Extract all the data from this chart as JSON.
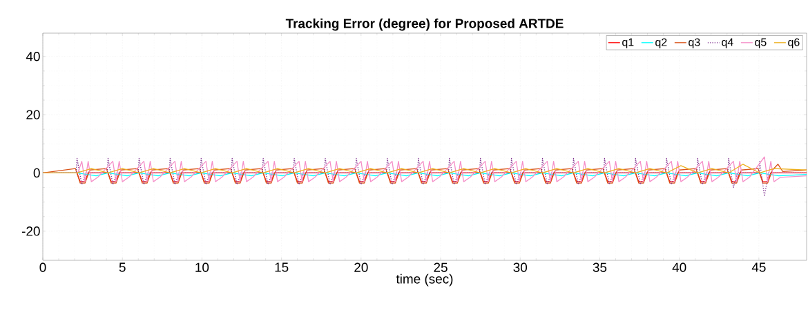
{
  "chart_data": {
    "type": "line",
    "title": "Tracking Error (degree) for Proposed ARTDE",
    "xlabel": "time (sec)",
    "xlim": [
      0,
      48
    ],
    "ylim": [
      -30,
      48
    ],
    "xticks": [
      0,
      5,
      10,
      15,
      20,
      25,
      30,
      35,
      40,
      45
    ],
    "yticks": [
      -20,
      0,
      20,
      40
    ],
    "grid": true,
    "legend": "top right",
    "series": [
      {
        "name": "q1",
        "color": "#ff0000",
        "x": [
          0,
          2.15,
          2.35,
          2.65,
          2.85,
          4.1,
          4.3,
          4.6,
          4.8,
          6.05,
          6.25,
          6.55,
          6.75,
          8.0,
          8.2,
          8.5,
          8.7,
          9.95,
          10.15,
          10.45,
          10.65,
          11.9,
          12.1,
          12.4,
          12.6,
          13.85,
          14.05,
          14.35,
          14.55,
          15.8,
          16.0,
          16.3,
          16.5,
          17.75,
          17.95,
          18.25,
          18.45,
          19.7,
          19.9,
          20.2,
          20.4,
          21.65,
          21.85,
          22.15,
          22.35,
          23.6,
          23.8,
          24.1,
          24.3,
          25.55,
          25.75,
          26.05,
          26.25,
          27.5,
          27.7,
          28.0,
          28.2,
          29.45,
          29.65,
          29.95,
          30.15,
          31.4,
          31.6,
          31.9,
          32.1,
          33.35,
          33.55,
          33.85,
          34.05,
          35.3,
          35.5,
          35.8,
          36.0,
          37.25,
          37.45,
          37.75,
          37.95,
          39.2,
          39.4,
          39.7,
          39.9,
          41.15,
          41.35,
          41.65,
          41.85,
          43.1,
          43.3,
          43.6,
          43.8,
          45.05,
          45.25,
          45.55,
          45.75,
          48
        ],
        "values": [
          0,
          0,
          -3,
          -3,
          0,
          0,
          -3,
          -3,
          0,
          0,
          -3,
          -3,
          0,
          0,
          -3,
          -3,
          0,
          0,
          -3,
          -3,
          0,
          0,
          -3,
          -3,
          0,
          0,
          -3,
          -3,
          0,
          0,
          -3,
          -3,
          0,
          0,
          -3,
          -3,
          0,
          0,
          -3,
          -3,
          0,
          0,
          -3,
          -3,
          0,
          0,
          -3,
          -3,
          0,
          0,
          -3,
          -3,
          0,
          0,
          -3,
          -3,
          0,
          0,
          -3,
          -3,
          0,
          0,
          -3,
          -3,
          0,
          0,
          -3,
          -3,
          0,
          0,
          -3,
          -3,
          0,
          0,
          -3,
          -3,
          0,
          0,
          -3,
          -3,
          0,
          0,
          -3,
          -3,
          0,
          0,
          -3,
          -3,
          0,
          0,
          -3,
          -3,
          0,
          0
        ]
      },
      {
        "name": "q2",
        "color": "#00ffff",
        "x": [
          0,
          2.15,
          3.35,
          4.1,
          5.3,
          6.05,
          7.25,
          8.0,
          9.2,
          9.95,
          11.15,
          11.9,
          13.1,
          13.85,
          15.05,
          15.8,
          17.0,
          17.75,
          18.95,
          19.7,
          20.9,
          21.65,
          22.85,
          23.6,
          24.8,
          25.55,
          26.75,
          27.5,
          28.7,
          29.45,
          30.65,
          31.4,
          32.6,
          33.35,
          34.55,
          35.3,
          36.5,
          37.25,
          38.45,
          39.2,
          40.4,
          41.15,
          42.35,
          43.1,
          44.3,
          45.05,
          46.25,
          48
        ],
        "values": [
          0,
          0,
          -1,
          0,
          -1,
          0,
          -1,
          0,
          -1,
          0,
          -1,
          0,
          -1,
          0,
          -1,
          0,
          -1,
          0,
          -1,
          0,
          -1,
          0,
          -1,
          0,
          -1,
          0,
          -1,
          0,
          -1,
          0,
          -1,
          0,
          -1,
          0,
          -1,
          0,
          -1,
          0,
          -1,
          0,
          -1,
          0,
          -1,
          0,
          -1,
          0,
          -1,
          -0.5
        ]
      },
      {
        "name": "q3",
        "color": "#d95319",
        "x": [
          0,
          2.05,
          2.35,
          2.65,
          2.95,
          4.0,
          4.3,
          4.6,
          4.9,
          5.95,
          6.25,
          6.55,
          6.85,
          7.9,
          8.2,
          8.5,
          8.8,
          9.85,
          10.15,
          10.45,
          10.75,
          11.8,
          12.1,
          12.4,
          12.7,
          13.75,
          14.05,
          14.35,
          14.65,
          15.7,
          16.0,
          16.3,
          16.6,
          17.65,
          17.95,
          18.25,
          18.55,
          19.6,
          19.9,
          20.2,
          20.5,
          21.55,
          21.85,
          22.15,
          22.45,
          23.5,
          23.8,
          24.1,
          24.4,
          25.45,
          25.75,
          26.05,
          26.35,
          27.4,
          27.7,
          28.0,
          28.3,
          29.35,
          29.65,
          29.95,
          30.25,
          31.3,
          31.6,
          31.9,
          32.2,
          33.25,
          33.55,
          33.85,
          34.15,
          35.2,
          35.5,
          35.8,
          36.1,
          37.15,
          37.45,
          37.75,
          38.05,
          39.1,
          39.4,
          39.7,
          40.0,
          41.05,
          41.35,
          41.65,
          41.95,
          43.0,
          43.3,
          43.6,
          43.9,
          44.95,
          45.25,
          45.55,
          45.85,
          46.2,
          46.5,
          48
        ],
        "values": [
          0,
          1.5,
          -3.5,
          -3.5,
          1,
          1.5,
          -3.5,
          -3.5,
          1,
          1.5,
          -3.5,
          -3.5,
          1,
          1.5,
          -3.5,
          -3.5,
          1,
          1.5,
          -3.5,
          -3.5,
          1,
          1.5,
          -3.5,
          -3.5,
          1,
          1.5,
          -3.5,
          -3.5,
          1,
          1.5,
          -3.5,
          -3.5,
          1,
          1.5,
          -3.5,
          -3.5,
          1,
          1.5,
          -3.5,
          -3.5,
          1,
          1.5,
          -3.5,
          -3.5,
          1,
          1.5,
          -3.5,
          -3.5,
          1,
          1.5,
          -3.5,
          -3.5,
          1,
          1.5,
          -3.5,
          -3.5,
          1,
          1.5,
          -3.5,
          -3.5,
          1,
          1.5,
          -3.5,
          -3.5,
          1,
          1.5,
          -3.5,
          -3.5,
          1,
          1.5,
          -3.5,
          -3.5,
          1,
          1.5,
          -3.5,
          -3.5,
          1,
          1.5,
          -3.5,
          -3.5,
          1,
          1.5,
          -3.5,
          -3.5,
          1,
          1.5,
          -3.5,
          -3.5,
          1,
          1.5,
          -3.5,
          -3.5,
          1,
          3,
          0.5,
          1
        ]
      },
      {
        "name": "q4",
        "color": "#7e2f8e",
        "line_style": "dotted",
        "x": [
          0,
          2.1,
          2.15,
          2.45,
          2.7,
          4.05,
          4.1,
          4.4,
          4.65,
          6.0,
          6.05,
          6.35,
          6.6,
          7.95,
          8.0,
          8.3,
          8.55,
          9.9,
          9.95,
          10.25,
          10.5,
          11.85,
          11.9,
          12.2,
          12.45,
          13.8,
          13.85,
          14.15,
          14.4,
          15.75,
          15.8,
          16.1,
          16.35,
          17.7,
          17.75,
          18.05,
          18.3,
          19.65,
          19.7,
          20.0,
          20.25,
          21.6,
          21.65,
          21.95,
          22.2,
          23.55,
          23.6,
          23.9,
          24.15,
          25.5,
          25.55,
          25.85,
          26.1,
          27.45,
          27.5,
          27.8,
          28.05,
          29.4,
          29.45,
          29.75,
          30.0,
          31.35,
          31.4,
          31.7,
          31.95,
          33.3,
          33.35,
          33.65,
          33.9,
          35.25,
          35.3,
          35.6,
          35.85,
          37.2,
          37.25,
          37.55,
          37.8,
          39.15,
          39.2,
          39.5,
          39.75,
          41.1,
          41.15,
          41.45,
          41.7,
          43.05,
          43.1,
          43.4,
          43.65,
          45.0,
          45.05,
          45.35,
          45.6,
          48
        ],
        "values": [
          0,
          0,
          5,
          -4,
          0,
          0,
          5,
          -4,
          0,
          0,
          5,
          -4,
          0,
          0,
          5,
          -4,
          0,
          0,
          5,
          -4,
          0,
          0,
          5,
          -4,
          0,
          0,
          5,
          -4,
          0,
          0,
          5,
          -4,
          0,
          0,
          5,
          -4,
          0,
          0,
          5,
          -4,
          0,
          0,
          5,
          -4,
          0,
          0,
          5,
          -4,
          0,
          0,
          5,
          -4,
          0,
          0,
          5,
          -4,
          0,
          0,
          5,
          -4,
          0,
          0,
          5,
          -4,
          0,
          0,
          5,
          -4,
          0,
          0,
          5,
          -4,
          0,
          0,
          5,
          -4,
          0,
          0,
          5,
          -4,
          0,
          0,
          5,
          -4,
          0,
          0,
          5,
          -5,
          0,
          0,
          4,
          -8,
          0,
          0
        ]
      },
      {
        "name": "q5",
        "color": "#f58fc8",
        "x": [
          0,
          2.2,
          2.45,
          2.65,
          2.85,
          3.05,
          3.45,
          4.4,
          4.6,
          4.8,
          5.0,
          5.4,
          6.35,
          6.55,
          6.75,
          6.95,
          7.35,
          8.3,
          8.5,
          8.7,
          8.9,
          9.3,
          10.25,
          10.45,
          10.65,
          10.85,
          11.25,
          12.2,
          12.4,
          12.6,
          12.8,
          13.2,
          14.15,
          14.35,
          14.55,
          14.75,
          15.15,
          16.1,
          16.3,
          16.5,
          16.7,
          17.1,
          18.05,
          18.25,
          18.45,
          18.65,
          19.05,
          20.0,
          20.2,
          20.4,
          20.6,
          21.0,
          21.95,
          22.15,
          22.35,
          22.55,
          22.95,
          23.9,
          24.1,
          24.3,
          24.5,
          24.9,
          25.85,
          26.05,
          26.25,
          26.45,
          26.85,
          27.8,
          28.0,
          28.2,
          28.4,
          28.8,
          29.75,
          29.95,
          30.15,
          30.35,
          30.75,
          31.7,
          31.9,
          32.1,
          32.3,
          32.7,
          33.65,
          33.85,
          34.05,
          34.25,
          34.65,
          35.6,
          35.8,
          36.0,
          36.2,
          36.6,
          37.55,
          37.75,
          37.95,
          38.15,
          38.55,
          39.5,
          39.7,
          39.9,
          40.1,
          40.5,
          41.45,
          41.65,
          41.85,
          42.05,
          42.45,
          43.4,
          43.6,
          43.8,
          44.0,
          44.4,
          45.35,
          45.55,
          45.75,
          45.95,
          46.35,
          48
        ],
        "values": [
          0,
          0,
          4,
          -3,
          4,
          -3,
          -1.5,
          4,
          -3,
          4,
          -3,
          -1.5,
          4,
          -3,
          4,
          -3,
          -1.5,
          4,
          -3,
          4,
          -3,
          -1.5,
          4,
          -3,
          4,
          -3,
          -1.5,
          4,
          -3,
          4,
          -3,
          -1.5,
          4,
          -3,
          4,
          -3,
          -1.5,
          4,
          -3,
          4,
          -3,
          -1.5,
          4,
          -3,
          4,
          -3,
          -1.5,
          4,
          -3,
          4,
          -3,
          -1.5,
          4,
          -3,
          4,
          -3,
          -1.5,
          4,
          -3,
          4,
          -3,
          -1.5,
          4,
          -3,
          4,
          -3,
          -1.5,
          4,
          -3,
          4,
          -3,
          -1.5,
          4,
          -3,
          4,
          -3,
          -1.5,
          4,
          -3,
          4,
          -3,
          -1.5,
          4,
          -3,
          4,
          -3,
          -1.5,
          4,
          -3,
          4,
          -3,
          -1.5,
          4,
          -3,
          4,
          -3,
          -1.5,
          4,
          -3,
          4,
          -3,
          -1.5,
          4,
          -3,
          4,
          -3,
          -1.5,
          4,
          -3,
          4,
          -3,
          -1.5,
          5.5,
          -3,
          4,
          -3,
          -1.5,
          -1
        ]
      },
      {
        "name": "q6",
        "color": "#edb120",
        "x": [
          0,
          2.15,
          3.05,
          4.1,
          5.0,
          6.05,
          6.95,
          8.0,
          8.9,
          9.95,
          10.85,
          11.9,
          12.8,
          13.85,
          14.75,
          15.8,
          16.7,
          17.75,
          18.65,
          19.7,
          20.6,
          21.65,
          22.55,
          23.6,
          24.5,
          25.55,
          26.45,
          27.5,
          28.4,
          29.45,
          30.35,
          31.4,
          32.3,
          33.35,
          34.25,
          35.3,
          36.2,
          37.25,
          38.15,
          39.2,
          40.1,
          41.15,
          42.05,
          43.1,
          44.0,
          45.05,
          45.95,
          48
        ],
        "values": [
          0,
          0,
          1.5,
          0,
          1.5,
          0,
          1.5,
          0,
          1.5,
          0,
          1.5,
          0,
          1.5,
          0,
          1.5,
          0,
          1.5,
          0,
          1.5,
          0,
          1.5,
          0,
          1.5,
          0,
          1.5,
          0,
          1.5,
          0,
          1.5,
          0,
          1.5,
          0,
          1.5,
          0,
          1.5,
          0,
          1.5,
          0,
          1.5,
          0,
          2.5,
          0,
          1.5,
          0,
          3,
          0,
          1.5,
          1
        ]
      }
    ]
  }
}
